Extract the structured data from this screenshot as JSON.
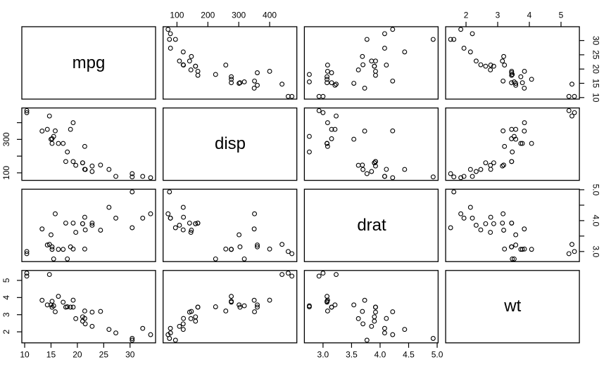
{
  "figure": {
    "background_color": "#ffffff",
    "border_color": "#000000",
    "point_color": "#000000",
    "tick_color": "#000000",
    "label_color": "#000000"
  },
  "chart_data": {
    "type": "scatter",
    "subtype": "scatterplot-matrix-pairs",
    "title": "",
    "grid": "off",
    "legend": "none",
    "point_symbol": "open-circle",
    "variables": [
      "mpg",
      "disp",
      "drat",
      "wt"
    ],
    "diagonal_labels": [
      "mpg",
      "disp",
      "drat",
      "wt"
    ],
    "n_points": 32,
    "axis_ranges": {
      "mpg": [
        9.46,
        34.84
      ],
      "disp": [
        55.064,
        488.036
      ],
      "drat": [
        2.6732,
        5.0168
      ],
      "wt": [
        1.35656,
        5.58044
      ]
    },
    "points": {
      "mpg": [
        21.0,
        21.0,
        22.8,
        21.4,
        18.7,
        18.1,
        14.3,
        24.4,
        22.8,
        19.2,
        17.8,
        16.4,
        17.3,
        15.2,
        10.4,
        10.4,
        14.7,
        32.4,
        30.4,
        33.9,
        21.5,
        15.5,
        15.2,
        13.3,
        19.2,
        27.3,
        26.0,
        30.4,
        15.8,
        19.7,
        15.0,
        21.4
      ],
      "disp": [
        160.0,
        160.0,
        108.0,
        258.0,
        360.0,
        225.0,
        360.0,
        146.7,
        140.8,
        167.6,
        167.6,
        275.8,
        275.8,
        275.8,
        472.0,
        460.0,
        440.0,
        78.7,
        75.7,
        71.1,
        120.1,
        318.0,
        304.0,
        350.0,
        400.0,
        79.0,
        120.3,
        95.1,
        351.0,
        145.0,
        301.0,
        121.0
      ],
      "drat": [
        3.9,
        3.9,
        3.85,
        3.08,
        3.15,
        2.76,
        3.21,
        3.69,
        3.92,
        3.92,
        3.92,
        3.07,
        3.07,
        3.07,
        2.93,
        3.0,
        3.23,
        4.08,
        4.93,
        4.22,
        3.7,
        2.76,
        3.15,
        3.73,
        3.08,
        4.08,
        4.43,
        3.77,
        4.22,
        3.62,
        3.54,
        4.11
      ],
      "wt": [
        2.62,
        2.875,
        2.32,
        3.215,
        3.44,
        3.46,
        3.57,
        3.19,
        3.15,
        3.44,
        3.44,
        4.07,
        3.73,
        3.78,
        5.25,
        5.424,
        5.345,
        2.2,
        1.615,
        1.835,
        2.465,
        3.52,
        3.435,
        3.84,
        3.845,
        1.935,
        2.14,
        1.513,
        3.17,
        2.77,
        3.57,
        2.78
      ]
    },
    "axes": {
      "top": [
        {
          "col": 1,
          "var": "disp",
          "ticks": [
            100,
            200,
            300,
            400
          ],
          "labels": [
            "100",
            "200",
            "300",
            "400"
          ]
        },
        {
          "col": 3,
          "var": "wt",
          "ticks": [
            2,
            3,
            4,
            5
          ],
          "labels": [
            "2",
            "3",
            "4",
            "5"
          ]
        }
      ],
      "bottom": [
        {
          "col": 0,
          "var": "mpg",
          "ticks": [
            10,
            15,
            20,
            25,
            30
          ],
          "labels": [
            "10",
            "15",
            "20",
            "25",
            "30"
          ]
        },
        {
          "col": 2,
          "var": "drat",
          "ticks": [
            3.0,
            3.5,
            4.0,
            4.5,
            5.0
          ],
          "labels": [
            "3.0",
            "3.5",
            "4.0",
            "4.5",
            "5.0"
          ]
        }
      ],
      "left": [
        {
          "row": 1,
          "var": "disp",
          "ticks": [
            100,
            200,
            300,
            400
          ],
          "labels": [
            "100",
            "",
            "300",
            ""
          ]
        },
        {
          "row": 3,
          "var": "wt",
          "ticks": [
            2,
            3,
            4,
            5
          ],
          "labels": [
            "2",
            "3",
            "4",
            "5"
          ]
        }
      ],
      "right": [
        {
          "row": 0,
          "var": "mpg",
          "ticks": [
            10,
            15,
            20,
            25,
            30
          ],
          "labels": [
            "10",
            "15",
            "20",
            "25",
            "30"
          ]
        },
        {
          "row": 2,
          "var": "drat",
          "ticks": [
            3.0,
            3.5,
            4.0,
            4.5,
            5.0
          ],
          "labels": [
            "3.0",
            "",
            "4.0",
            "",
            "5.0"
          ]
        }
      ]
    }
  }
}
